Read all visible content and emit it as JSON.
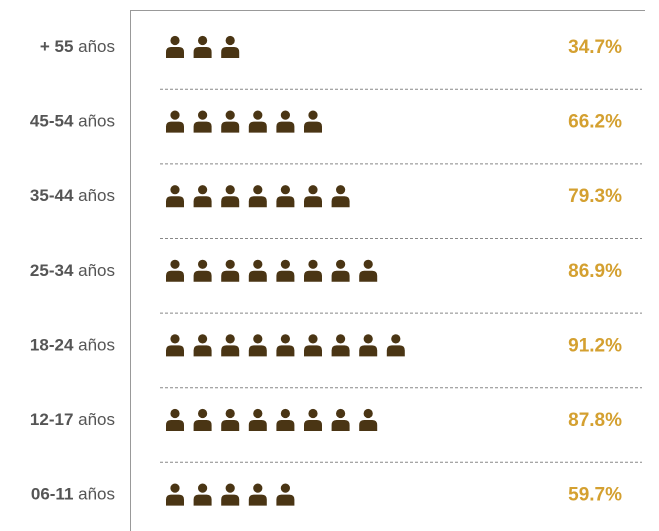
{
  "chart_data": {
    "type": "pictogram",
    "categories": [
      "+ 55 años",
      "45-54 años",
      "35-44 años",
      "25-34 años",
      "18-24 años",
      "12-17 años",
      "06-11 años"
    ],
    "values": [
      34.7,
      66.2,
      79.3,
      86.9,
      91.2,
      87.8,
      59.7
    ],
    "value_labels": [
      "34.7%",
      "66.2%",
      "79.3%",
      "86.9%",
      "91.2%",
      "87.8%",
      "59.7%"
    ],
    "color": "#4a3514",
    "label_color": "#d4a030"
  }
}
